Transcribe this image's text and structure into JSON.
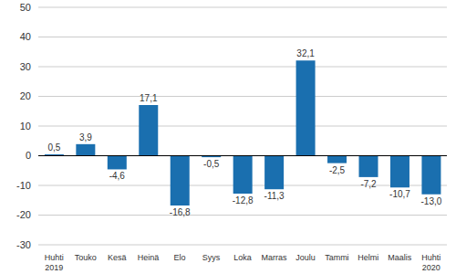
{
  "chart_data": {
    "type": "bar",
    "categories": [
      "Huhti 2019",
      "Touko",
      "Kesä",
      "Heinä",
      "Elo",
      "Syys",
      "Loka",
      "Marras",
      "Joulu",
      "Tammi",
      "Helmi",
      "Maalis",
      "Huhti 2020"
    ],
    "values": [
      0.5,
      3.9,
      -4.6,
      17.1,
      -16.8,
      -0.5,
      -12.8,
      -11.3,
      32.1,
      -2.5,
      -7.2,
      -10.7,
      -13.0
    ],
    "value_labels": [
      "0,5",
      "3,9",
      "-4,6",
      "17,1",
      "-16,8",
      "-0,5",
      "-12,8",
      "-11,3",
      "32,1",
      "-2,5",
      "-7,2",
      "-10,7",
      "-13,0"
    ],
    "color": "#1a6faf",
    "ylim": [
      -30,
      50
    ],
    "yticks": [
      -30,
      -20,
      -10,
      0,
      10,
      20,
      30,
      40,
      50
    ],
    "grid": true,
    "data_labels": true
  }
}
